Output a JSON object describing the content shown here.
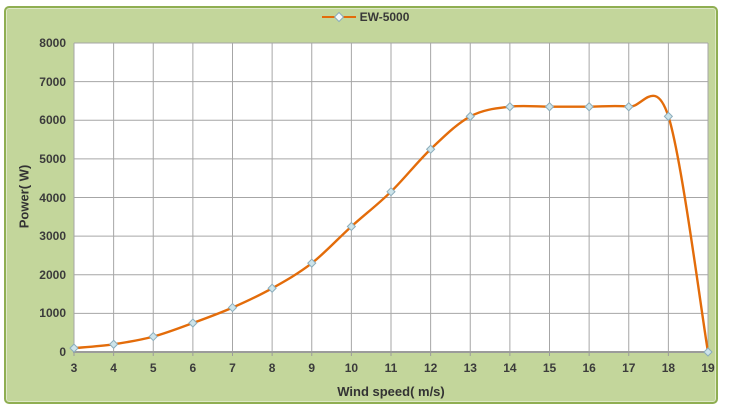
{
  "legend": {
    "label": "EW-5000"
  },
  "axes": {
    "x_title": "Wind speed( m/s)",
    "y_title": "Power( W)"
  },
  "colors": {
    "chart_background": "#c3d69b",
    "chart_border": "#8fae52",
    "plot_background": "#ffffff",
    "gridline": "#a6a6a6",
    "axis_line": "#9b9b9b",
    "series_line": "#e36c0a",
    "marker_fill": "#cde4ea",
    "marker_stroke": "#8cadbb",
    "text": "#3b3b3b"
  },
  "chart_data": {
    "type": "line",
    "title": "",
    "legend_entries": [
      "EW-5000"
    ],
    "legend_position": "top-center",
    "smooth": true,
    "marker": "diamond",
    "grid": true,
    "xlabel": "Wind speed( m/s)",
    "ylabel": "Power( W)",
    "xlim": [
      3,
      19
    ],
    "ylim": [
      0,
      8000
    ],
    "xticks": [
      3,
      4,
      5,
      6,
      7,
      8,
      9,
      10,
      11,
      12,
      13,
      14,
      15,
      16,
      17,
      18,
      19
    ],
    "yticks": [
      0,
      1000,
      2000,
      3000,
      4000,
      5000,
      6000,
      7000,
      8000
    ],
    "x": [
      3,
      4,
      5,
      6,
      7,
      8,
      9,
      10,
      11,
      12,
      13,
      14,
      15,
      16,
      17,
      18,
      19
    ],
    "series": [
      {
        "name": "EW-5000",
        "values": [
          100,
          200,
          400,
          750,
          1150,
          1650,
          2300,
          3250,
          4150,
          5250,
          6100,
          6350,
          6350,
          6350,
          6350,
          6100,
          0
        ]
      }
    ]
  }
}
